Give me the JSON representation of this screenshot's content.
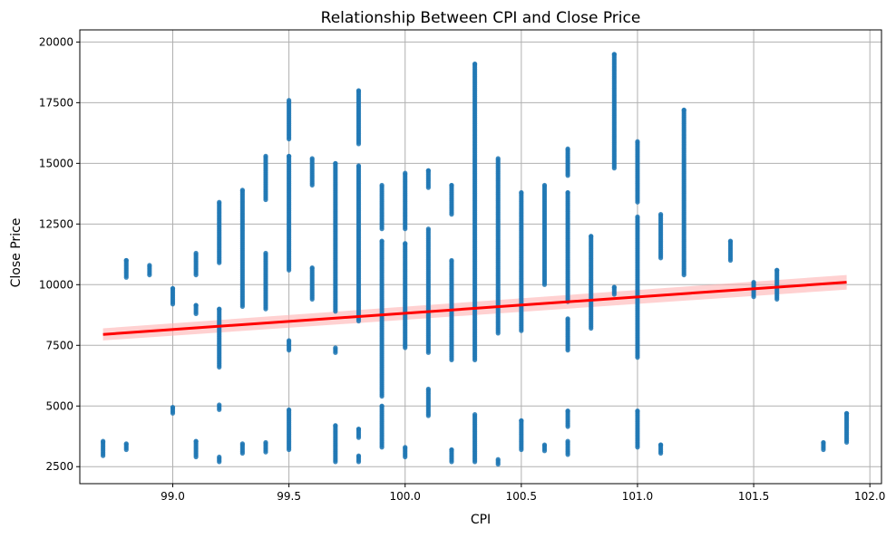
{
  "chart_data": {
    "type": "scatter",
    "title": "Relationship Between CPI and Close Price",
    "xlabel": "CPI",
    "ylabel": "Close Price",
    "xlim": [
      98.6,
      102.05
    ],
    "ylim": [
      1800,
      20500
    ],
    "x_ticks": [
      99.0,
      99.5,
      100.0,
      100.5,
      101.0,
      101.5,
      102.0
    ],
    "x_tick_labels": [
      "99.0",
      "99.5",
      "100.0",
      "100.5",
      "101.0",
      "101.5",
      "102.0"
    ],
    "y_ticks": [
      2500,
      5000,
      7500,
      10000,
      12500,
      15000,
      17500,
      20000
    ],
    "y_tick_labels": [
      "2500",
      "5000",
      "7500",
      "10000",
      "12500",
      "15000",
      "17500",
      "20000"
    ],
    "grid": true,
    "colors": {
      "points": "#1f77b4",
      "regression_line": "#ff0000",
      "confidence_band": "#ffb3b3"
    },
    "regression": {
      "x": [
        98.7,
        101.9
      ],
      "y": [
        7950,
        10100
      ],
      "ci_half_width_start": 250,
      "ci_half_width_end": 300
    },
    "point_groups": [
      {
        "x": 98.7,
        "ranges": [
          [
            2950,
            3550
          ]
        ]
      },
      {
        "x": 98.8,
        "ranges": [
          [
            3200,
            3450
          ],
          [
            10300,
            11000
          ]
        ]
      },
      {
        "x": 98.9,
        "ranges": [
          [
            10400,
            10800
          ]
        ]
      },
      {
        "x": 99.0,
        "ranges": [
          [
            4700,
            4950
          ],
          [
            9200,
            9850
          ]
        ]
      },
      {
        "x": 99.1,
        "ranges": [
          [
            2900,
            3550
          ],
          [
            8800,
            9150
          ],
          [
            10400,
            11300
          ]
        ]
      },
      {
        "x": 99.2,
        "ranges": [
          [
            2700,
            2900
          ],
          [
            4850,
            5050
          ],
          [
            6600,
            9000
          ],
          [
            10900,
            13400
          ]
        ]
      },
      {
        "x": 99.3,
        "ranges": [
          [
            3050,
            3450
          ],
          [
            9100,
            13900
          ]
        ]
      },
      {
        "x": 99.4,
        "ranges": [
          [
            3100,
            3500
          ],
          [
            9000,
            11300
          ],
          [
            13500,
            15300
          ]
        ]
      },
      {
        "x": 99.5,
        "ranges": [
          [
            3200,
            4850
          ],
          [
            7300,
            7700
          ],
          [
            10600,
            15300
          ],
          [
            16000,
            17600
          ]
        ]
      },
      {
        "x": 99.6,
        "ranges": [
          [
            9400,
            10700
          ],
          [
            14100,
            15200
          ]
        ]
      },
      {
        "x": 99.7,
        "ranges": [
          [
            2700,
            4200
          ],
          [
            7200,
            7400
          ],
          [
            8900,
            15000
          ]
        ]
      },
      {
        "x": 99.8,
        "ranges": [
          [
            2700,
            2950
          ],
          [
            3700,
            4050
          ],
          [
            8500,
            14900
          ],
          [
            15800,
            18000
          ]
        ]
      },
      {
        "x": 99.9,
        "ranges": [
          [
            3300,
            5000
          ],
          [
            5400,
            11800
          ],
          [
            12300,
            14100
          ]
        ]
      },
      {
        "x": 100.0,
        "ranges": [
          [
            2900,
            3300
          ],
          [
            7400,
            11700
          ],
          [
            12300,
            14600
          ]
        ]
      },
      {
        "x": 100.1,
        "ranges": [
          [
            4600,
            5700
          ],
          [
            7200,
            12300
          ],
          [
            14000,
            14700
          ]
        ]
      },
      {
        "x": 100.2,
        "ranges": [
          [
            2700,
            3200
          ],
          [
            6900,
            11000
          ],
          [
            12900,
            14100
          ]
        ]
      },
      {
        "x": 100.3,
        "ranges": [
          [
            2700,
            4650
          ],
          [
            6900,
            19100
          ]
        ]
      },
      {
        "x": 100.4,
        "ranges": [
          [
            2600,
            2800
          ],
          [
            8000,
            15200
          ]
        ]
      },
      {
        "x": 100.5,
        "ranges": [
          [
            3200,
            4400
          ],
          [
            8100,
            13800
          ]
        ]
      },
      {
        "x": 100.6,
        "ranges": [
          [
            3150,
            3400
          ],
          [
            10000,
            14100
          ]
        ]
      },
      {
        "x": 100.7,
        "ranges": [
          [
            3000,
            3550
          ],
          [
            4150,
            4800
          ],
          [
            7300,
            8600
          ],
          [
            9300,
            13800
          ],
          [
            14500,
            15600
          ]
        ]
      },
      {
        "x": 100.8,
        "ranges": [
          [
            8200,
            12000
          ]
        ]
      },
      {
        "x": 100.9,
        "ranges": [
          [
            9600,
            9900
          ],
          [
            14800,
            19500
          ]
        ]
      },
      {
        "x": 101.0,
        "ranges": [
          [
            3300,
            4800
          ],
          [
            7000,
            12800
          ],
          [
            13400,
            15900
          ]
        ]
      },
      {
        "x": 101.1,
        "ranges": [
          [
            3050,
            3400
          ],
          [
            11100,
            12900
          ]
        ]
      },
      {
        "x": 101.2,
        "ranges": [
          [
            10400,
            17200
          ]
        ]
      },
      {
        "x": 101.4,
        "ranges": [
          [
            11000,
            11800
          ]
        ]
      },
      {
        "x": 101.5,
        "ranges": [
          [
            9500,
            10100
          ]
        ]
      },
      {
        "x": 101.6,
        "ranges": [
          [
            9400,
            10600
          ]
        ]
      },
      {
        "x": 101.8,
        "ranges": [
          [
            3200,
            3500
          ]
        ]
      },
      {
        "x": 101.9,
        "ranges": [
          [
            3500,
            4700
          ]
        ]
      }
    ]
  }
}
